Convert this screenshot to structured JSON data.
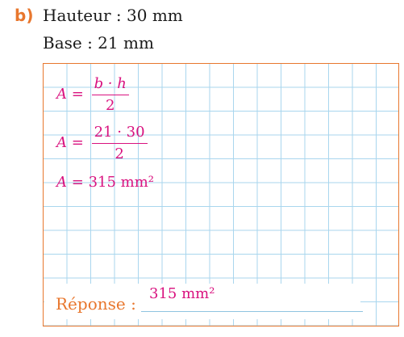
{
  "exercise": {
    "label": "b)",
    "height_line": "Hauteur : 30 mm",
    "base_line": "Base : 21 mm"
  },
  "work": {
    "line1": {
      "lhs": "A",
      "eq": "=",
      "num": "b · h",
      "den": "2"
    },
    "line2": {
      "lhs": "A",
      "eq": "=",
      "num": "21 · 30",
      "den": "2"
    },
    "line3": {
      "lhs": "A",
      "eq": "=",
      "value": "315 mm²"
    }
  },
  "answer": {
    "label": "Réponse :",
    "value": "315 mm²"
  },
  "colors": {
    "accent_orange": "#e8772e",
    "handwriting_magenta": "#d9127f",
    "grid_blue": "#a9d6ee",
    "text": "#1a1a1a"
  }
}
